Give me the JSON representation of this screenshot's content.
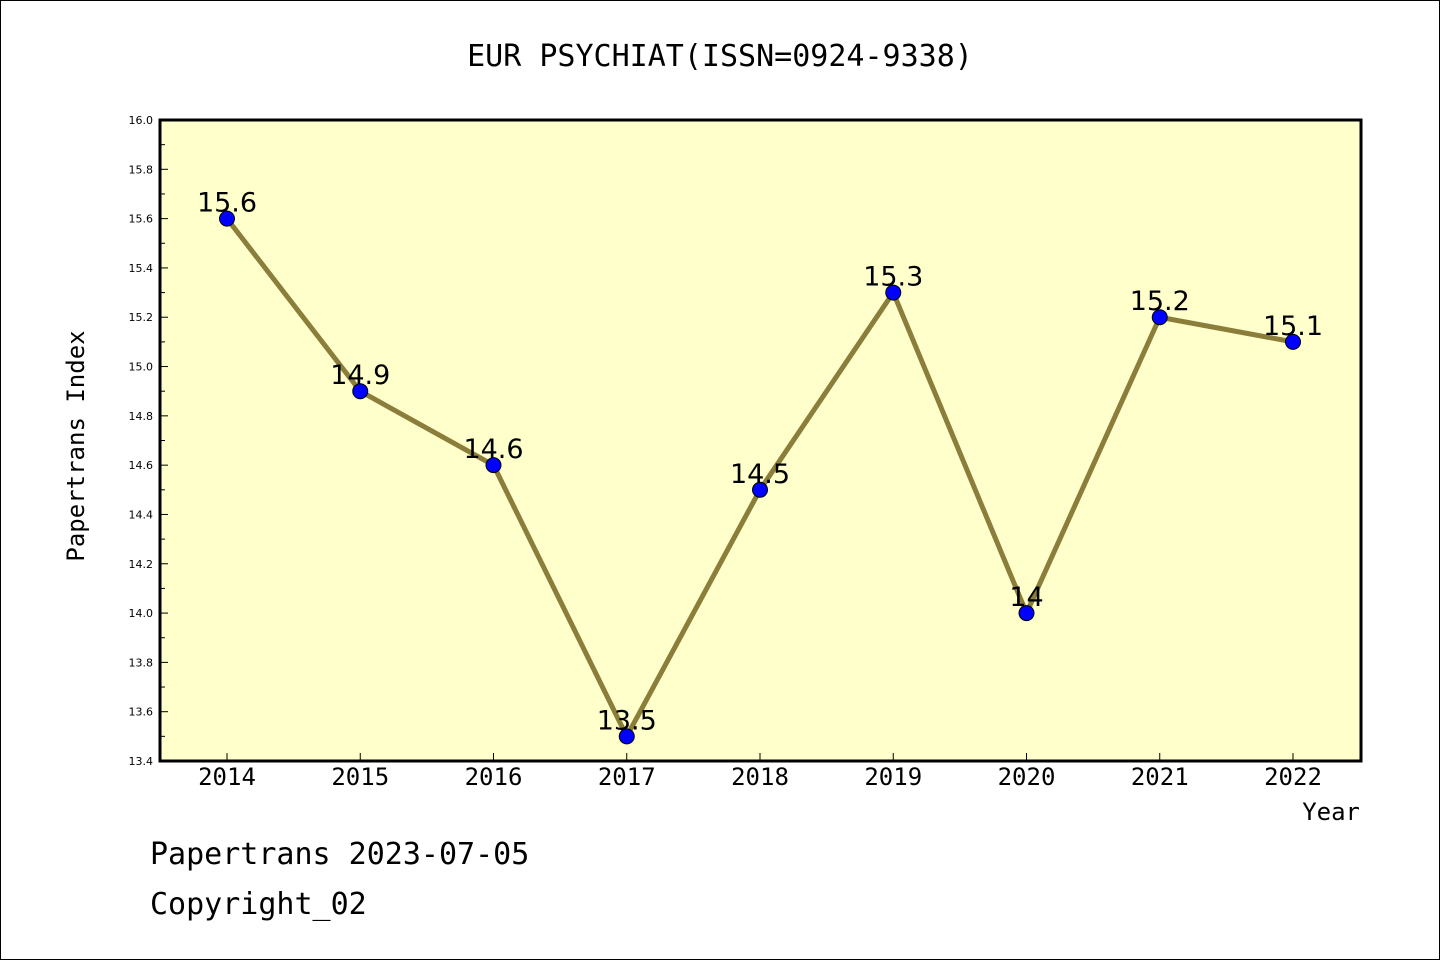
{
  "chart_data": {
    "type": "line",
    "title": "EUR PSYCHIAT(ISSN=0924-9338)",
    "xlabel": "Year",
    "ylabel": "Papertrans Index",
    "categories": [
      "2014",
      "2015",
      "2016",
      "2017",
      "2018",
      "2019",
      "2020",
      "2021",
      "2022"
    ],
    "values": [
      15.6,
      14.9,
      14.6,
      13.5,
      14.5,
      15.3,
      14.0,
      15.2,
      15.1
    ],
    "data_labels": [
      "15.6",
      "14.9",
      "14.6",
      "13.5",
      "14.5",
      "15.3",
      "14",
      "15.2",
      "15.1"
    ],
    "ylim": [
      13.4,
      16.0
    ],
    "ytick_labels": [
      "13.4",
      "13.6",
      "13.8",
      "14.0",
      "14.2",
      "14.4",
      "14.6",
      "14.8",
      "15.0",
      "15.2",
      "15.4",
      "15.6",
      "15.8",
      "16.0"
    ],
    "grid": false,
    "legend": "none",
    "colors": {
      "plot_background": "#ffffcc",
      "line": "#8b7d3a",
      "marker": "#0000ff"
    }
  },
  "footer": {
    "line1": "Papertrans 2023-07-05",
    "line2": "Copyright_02"
  }
}
